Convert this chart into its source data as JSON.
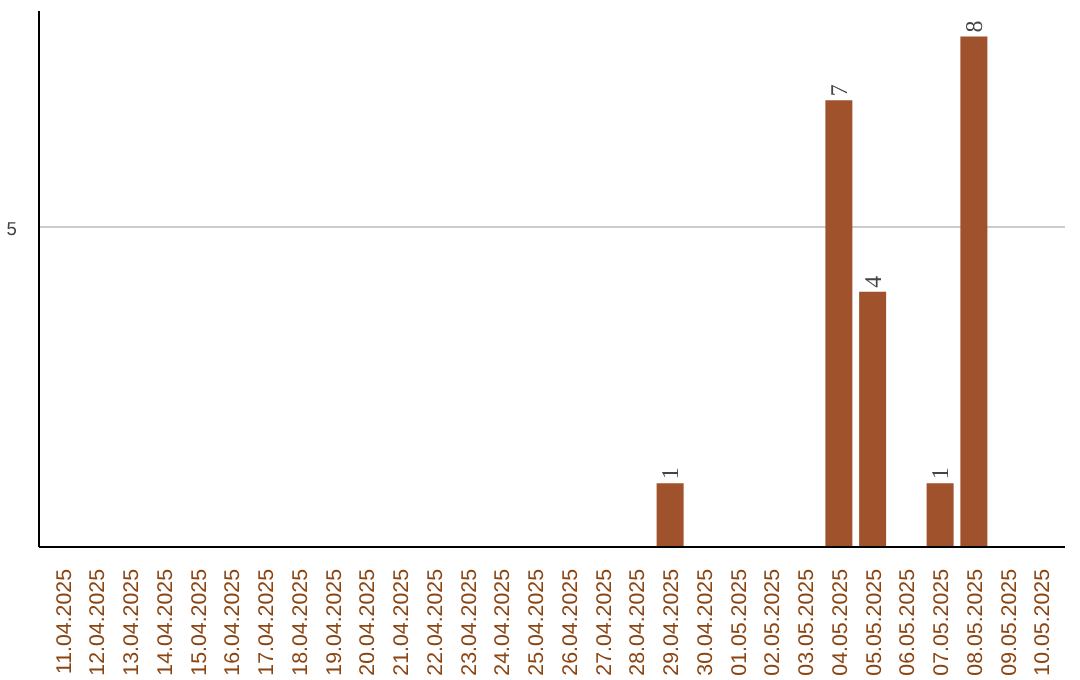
{
  "chart_data": {
    "type": "bar",
    "categories": [
      "11.04.2025",
      "12.04.2025",
      "13.04.2025",
      "14.04.2025",
      "15.04.2025",
      "16.04.2025",
      "17.04.2025",
      "18.04.2025",
      "19.04.2025",
      "20.04.2025",
      "21.04.2025",
      "22.04.2025",
      "23.04.2025",
      "24.04.2025",
      "25.04.2025",
      "26.04.2025",
      "27.04.2025",
      "28.04.2025",
      "29.04.2025",
      "30.04.2025",
      "01.05.2025",
      "02.05.2025",
      "03.05.2025",
      "04.05.2025",
      "05.05.2025",
      "06.05.2025",
      "07.05.2025",
      "08.05.2025",
      "09.05.2025",
      "10.05.2025"
    ],
    "values": [
      null,
      null,
      null,
      null,
      null,
      null,
      null,
      null,
      null,
      null,
      null,
      null,
      null,
      null,
      null,
      null,
      null,
      null,
      1,
      null,
      null,
      null,
      null,
      7,
      4,
      null,
      1,
      8,
      null,
      null
    ],
    "data_labels": true,
    "color": "#a0522d",
    "ylim": [
      0,
      8.4
    ],
    "yticks": [
      5
    ],
    "grid": "y"
  }
}
